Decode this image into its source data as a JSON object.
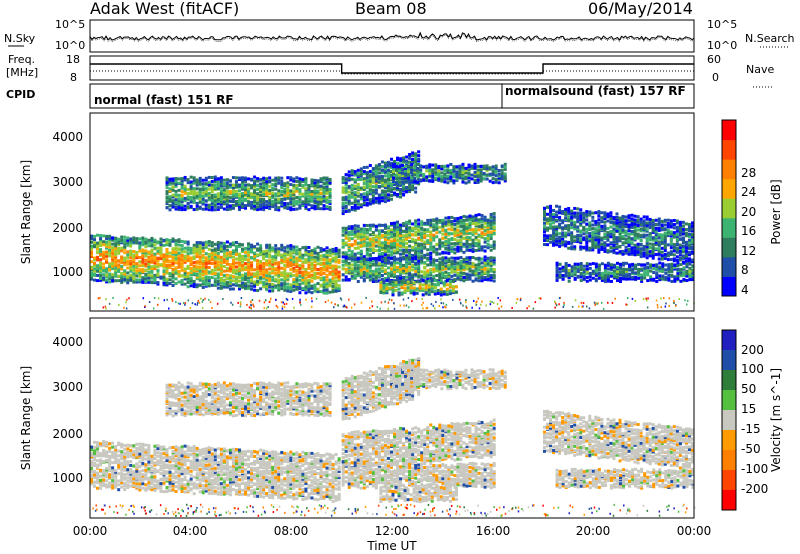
{
  "header": {
    "station": "Adak West (fitACF)",
    "beam": "Beam 08",
    "date": "06/May/2014"
  },
  "noise_panel": {
    "left_label": "N.Sky",
    "right_label": "N.Search",
    "left_ticks": [
      "10^5",
      "10^0"
    ],
    "right_ticks": [
      "10^5",
      "10^0"
    ]
  },
  "freq_panel": {
    "left_label_1": "Freq.",
    "left_label_2": "[MHz]",
    "left_ticks": [
      "18",
      "8"
    ],
    "right_label": "Nave",
    "right_ticks": [
      "60",
      "0"
    ]
  },
  "cpid": {
    "label": "CPID",
    "modes": [
      {
        "name": "normal (fast) 151 RF"
      },
      {
        "name": "normalsound (fast) 157 RF"
      }
    ]
  },
  "colors": {
    "power_scale": [
      "#0000ff",
      "#1f4fa8",
      "#2e7d5f",
      "#3cb371",
      "#9acd32",
      "#ffa500",
      "#ff7f00",
      "#ff4500",
      "#ff0000"
    ],
    "velocity_scale": [
      "#2020c0",
      "#1f4fa8",
      "#2e7d3a",
      "#55c040",
      "#c8c8c0",
      "#ff9a00",
      "#ff7f00",
      "#ff4500",
      "#ff0000"
    ]
  },
  "chart_data": [
    {
      "type": "heatmap",
      "name": "power",
      "xlabel": "",
      "ylabel": "Slant Range [km]",
      "xlim_hours": [
        0,
        24
      ],
      "ylim": [
        180,
        4600
      ],
      "yticks": [
        "4000",
        "3000",
        "2000",
        "1000"
      ],
      "colorbar_label": "Power [dB]",
      "colorbar_ticks": [
        "28",
        "24",
        "20",
        "16",
        "12",
        "8",
        "4"
      ],
      "bands": [
        {
          "t0": 0.0,
          "t1": 9.9,
          "r0": 900,
          "r1": 1900,
          "level": 0.72,
          "drift": -300
        },
        {
          "t0": 3.0,
          "t1": 9.5,
          "r0": 2500,
          "r1": 3200,
          "level": 0.45,
          "drift": 0
        },
        {
          "t0": 10.0,
          "t1": 16.0,
          "r0": 1300,
          "r1": 2100,
          "level": 0.55,
          "drift": 300
        },
        {
          "t0": 10.0,
          "t1": 16.0,
          "r0": 900,
          "r1": 1400,
          "level": 0.5,
          "drift": 0
        },
        {
          "t0": 10.0,
          "t1": 13.0,
          "r0": 2400,
          "r1": 3300,
          "level": 0.4,
          "drift": 500
        },
        {
          "t0": 11.5,
          "t1": 14.5,
          "r0": 600,
          "r1": 900,
          "level": 0.6,
          "drift": 0
        },
        {
          "t0": 12.0,
          "t1": 16.5,
          "r0": 3100,
          "r1": 3500,
          "level": 0.35,
          "drift": 0
        },
        {
          "t0": 18.0,
          "t1": 24.0,
          "r0": 1700,
          "r1": 2600,
          "level": 0.3,
          "drift": -400
        },
        {
          "t0": 18.5,
          "t1": 24.0,
          "r0": 900,
          "r1": 1300,
          "level": 0.3,
          "drift": 0
        }
      ]
    },
    {
      "type": "heatmap",
      "name": "velocity",
      "xlabel": "Time UT",
      "ylabel": "Slant Range [km]",
      "xlim_hours": [
        0,
        24
      ],
      "xticks": [
        "00:00",
        "04:00",
        "08:00",
        "12:00",
        "16:00",
        "20:00",
        "00:00"
      ],
      "ylim": [
        180,
        4600
      ],
      "yticks": [
        "4000",
        "3000",
        "2000",
        "1000"
      ],
      "colorbar_label": "Velocity [m s^-1]",
      "colorbar_ticks": [
        "200",
        "100",
        "50",
        "15",
        "-15",
        "-50",
        "-100",
        "-200"
      ]
    }
  ]
}
